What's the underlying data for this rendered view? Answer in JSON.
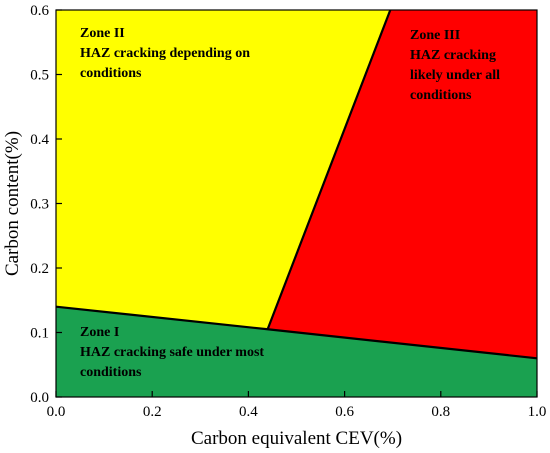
{
  "chart_data": {
    "type": "area",
    "title": "",
    "xlabel": "Carbon equivalent CEV(%)",
    "ylabel": "Carbon content(%)",
    "xlim": [
      0,
      1.0
    ],
    "ylim": [
      0,
      0.6
    ],
    "xticks": [
      "0.0",
      "0.2",
      "0.4",
      "0.6",
      "0.8",
      "1.0"
    ],
    "yticks": [
      "0.0",
      "0.1",
      "0.2",
      "0.3",
      "0.4",
      "0.5",
      "0.6"
    ],
    "zones": [
      {
        "name": "Zone I",
        "description_lines": [
          "HAZ cracking safe under most",
          "conditions"
        ],
        "color": "#1aa150",
        "polygon": [
          [
            0,
            0
          ],
          [
            1.0,
            0
          ],
          [
            1.0,
            0.06
          ],
          [
            0.44,
            0.105
          ],
          [
            0,
            0.14
          ]
        ]
      },
      {
        "name": "Zone II",
        "description_lines": [
          "HAZ cracking depending on",
          "conditions"
        ],
        "color": "#ffff00",
        "polygon": [
          [
            0,
            0.14
          ],
          [
            0.44,
            0.105
          ],
          [
            0.695,
            0.6
          ],
          [
            0,
            0.6
          ]
        ]
      },
      {
        "name": "Zone III",
        "description_lines": [
          "HAZ cracking",
          "likely under all",
          "conditions"
        ],
        "color": "#ff0000",
        "polygon": [
          [
            0.44,
            0.105
          ],
          [
            1.0,
            0.06
          ],
          [
            1.0,
            0.6
          ],
          [
            0.695,
            0.6
          ]
        ]
      }
    ],
    "boundaries": [
      {
        "points": [
          [
            0,
            0.14
          ],
          [
            0.44,
            0.105
          ],
          [
            1.0,
            0.06
          ]
        ]
      },
      {
        "points": [
          [
            0.44,
            0.105
          ],
          [
            0.695,
            0.6
          ]
        ]
      }
    ],
    "grid": false,
    "legend": "none"
  }
}
